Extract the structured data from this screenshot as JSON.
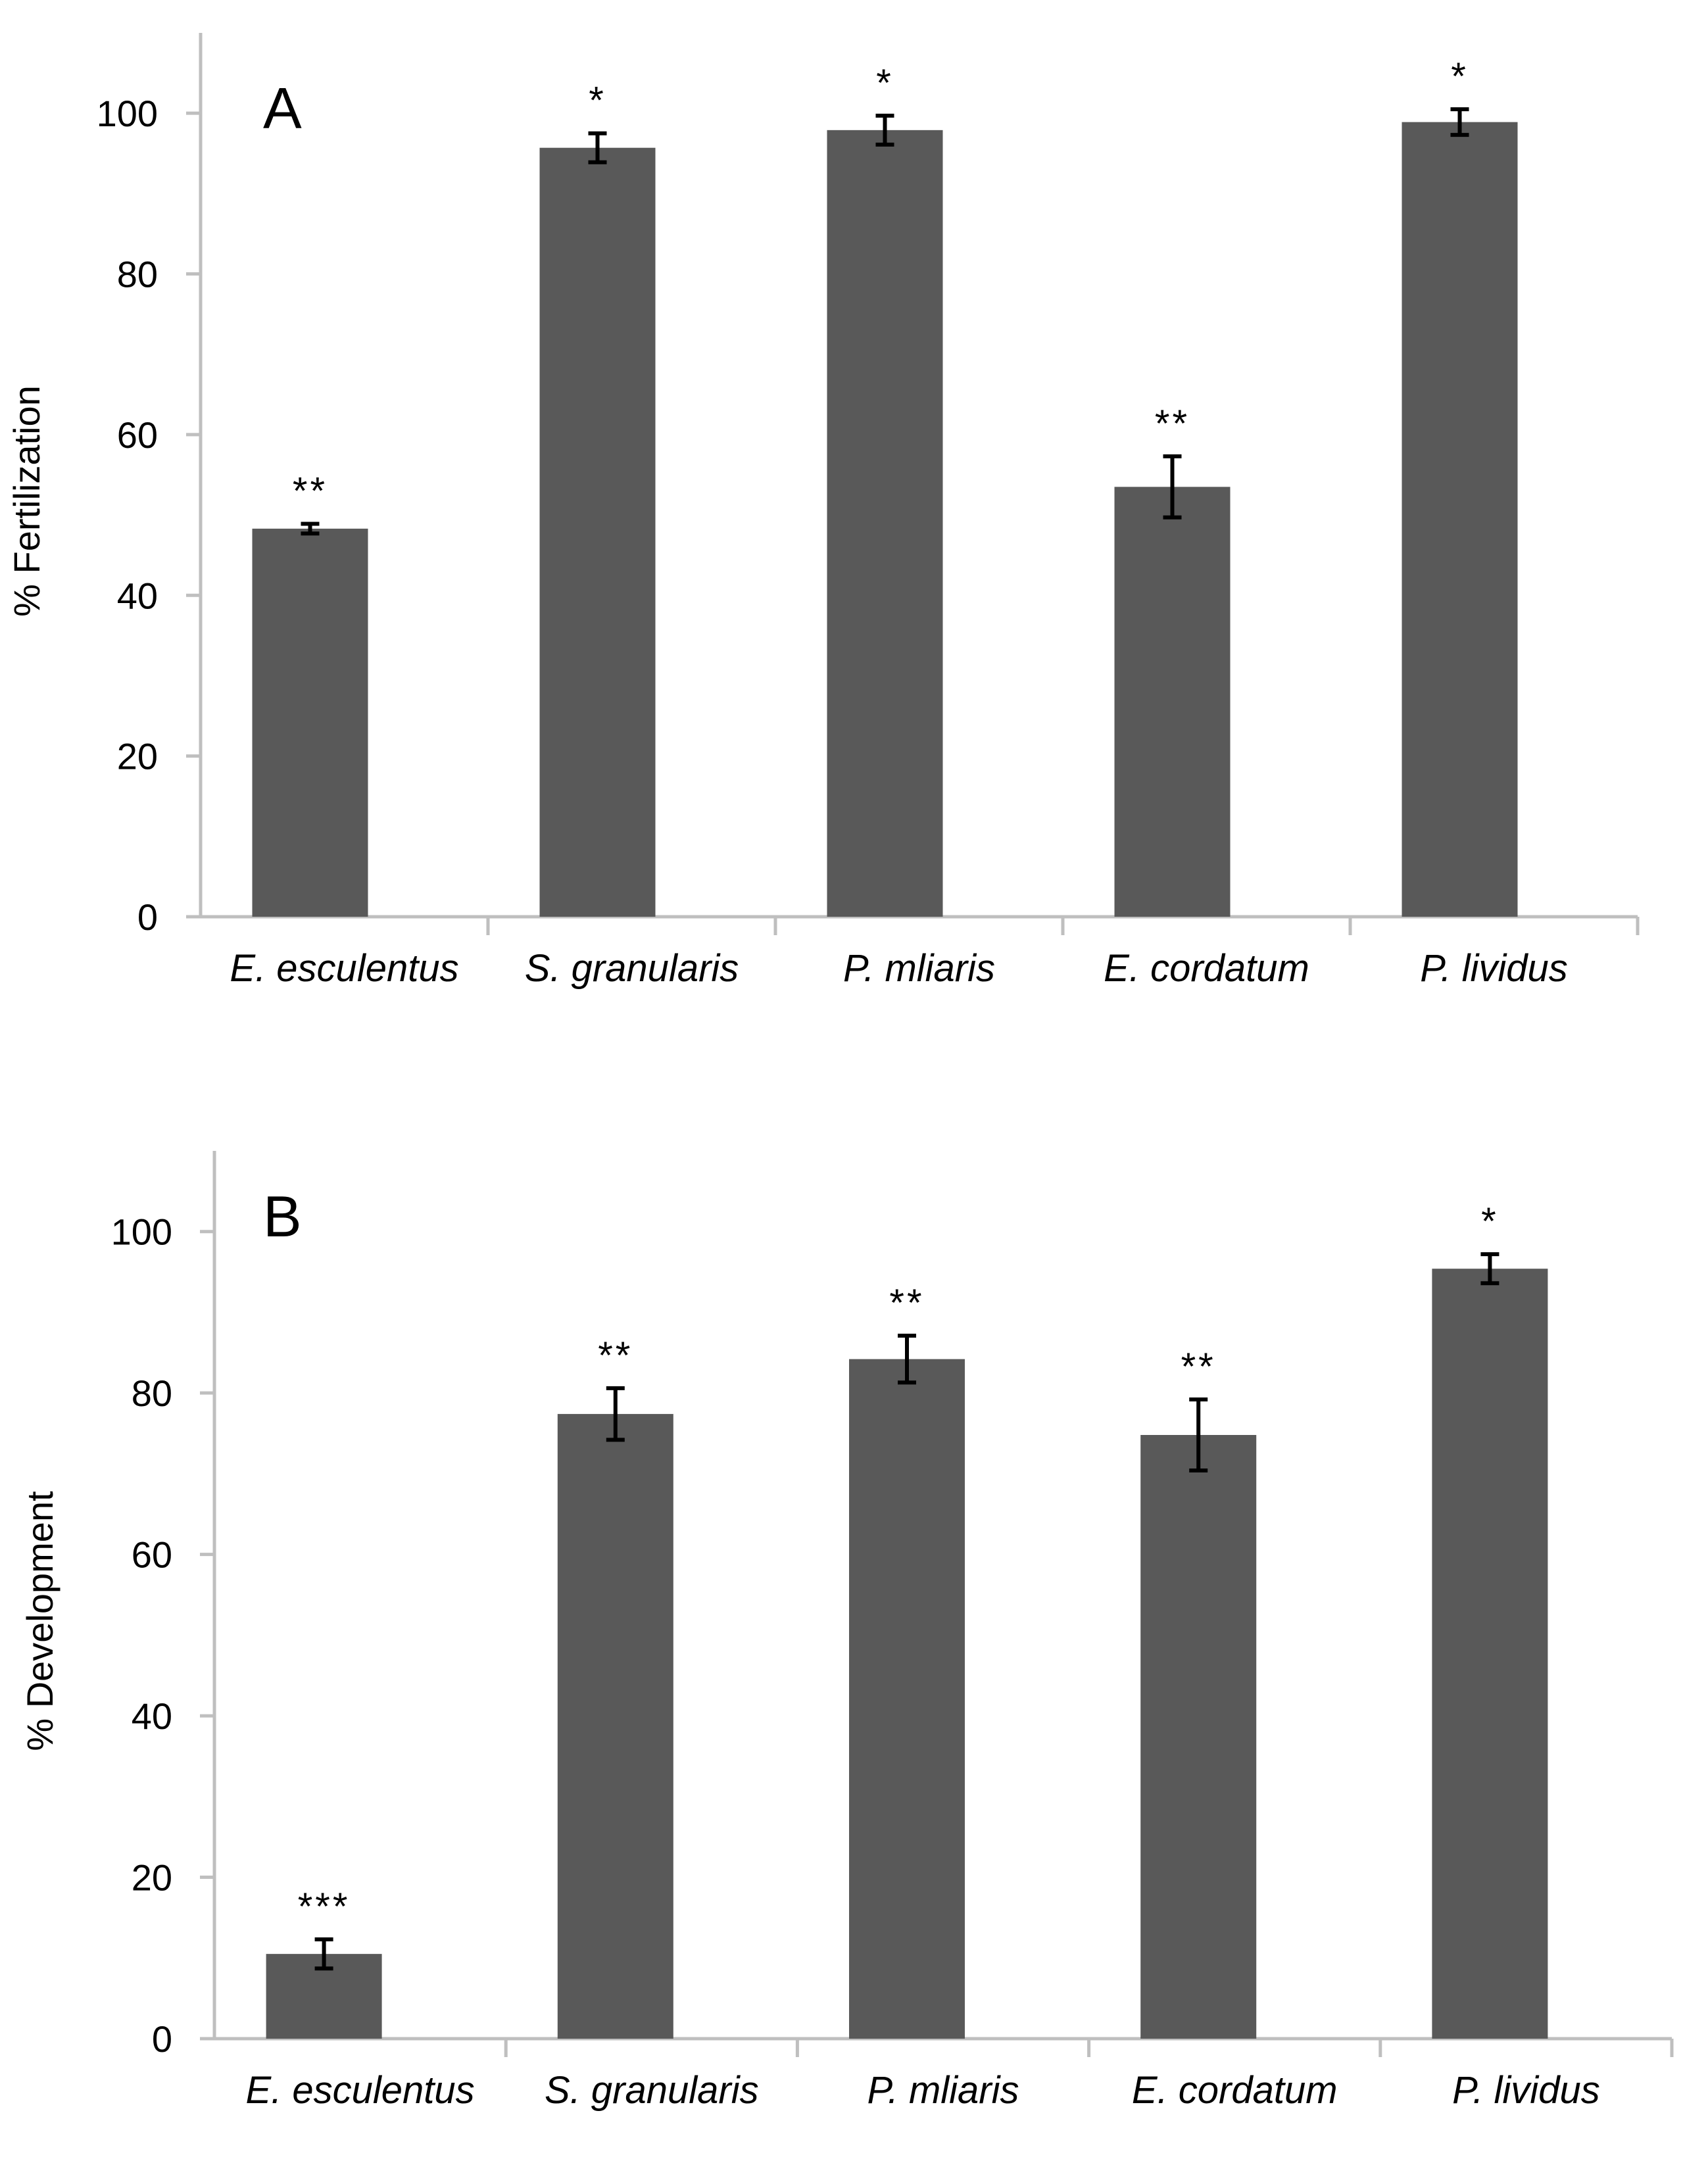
{
  "chart_data": [
    {
      "type": "bar",
      "panel_label": "A",
      "ylabel": "% Fertilization",
      "xlabel": "",
      "categories": [
        "E. esculentus",
        "S. granularis",
        "P. mliaris",
        "E. cordatum",
        "P. lividus"
      ],
      "values": [
        48.3,
        95.7,
        97.9,
        53.5,
        98.9
      ],
      "errors": [
        0.6,
        1.8,
        1.8,
        3.8,
        1.6
      ],
      "significance": [
        "**",
        "*",
        "*",
        "**",
        "*"
      ],
      "ylim": [
        0,
        110
      ],
      "yticks": [
        "0",
        "20",
        "40",
        "60",
        "80",
        "100"
      ],
      "grid": false,
      "bar_color": "#595959"
    },
    {
      "type": "bar",
      "panel_label": "B",
      "ylabel": "% Development",
      "xlabel": "",
      "categories": [
        "E. esculentus",
        "S. granularis",
        "P. mliaris",
        "E. cordatum",
        "P. lividus"
      ],
      "values": [
        10.5,
        77.4,
        84.2,
        74.8,
        95.4
      ],
      "errors": [
        1.8,
        3.2,
        2.9,
        4.4,
        1.8
      ],
      "significance": [
        "***",
        "**",
        "**",
        "**",
        "*"
      ],
      "ylim": [
        0,
        110
      ],
      "yticks": [
        "0",
        "20",
        "40",
        "60",
        "80",
        "100"
      ],
      "grid": false,
      "bar_color": "#595959"
    }
  ]
}
